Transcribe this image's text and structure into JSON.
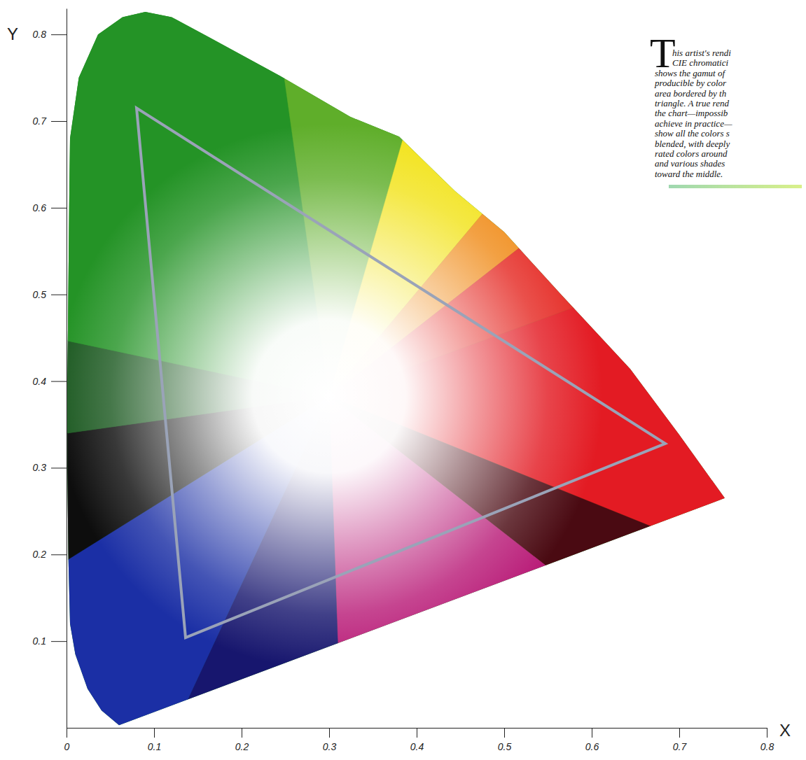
{
  "chart_data": {
    "type": "chromaticity",
    "x_label": "X",
    "y_label": "Y",
    "xlim": [
      0,
      0.8
    ],
    "ylim": [
      0,
      0.83
    ],
    "xticks": [
      0,
      0.1,
      0.2,
      0.3,
      0.4,
      0.5,
      0.6,
      0.7,
      0.8
    ],
    "yticks": [
      0.1,
      0.2,
      0.3,
      0.4,
      0.5,
      0.6,
      0.7,
      0.8
    ],
    "locus": {
      "x": [
        0.06,
        0.04,
        0.024,
        0.01,
        0.004,
        0.002,
        0.001,
        0.001,
        0.002,
        0.003,
        0.004,
        0.014,
        0.036,
        0.064,
        0.09,
        0.12,
        0.164,
        0.244,
        0.324,
        0.38,
        0.444,
        0.5,
        0.564,
        0.644,
        0.7,
        0.752
      ],
      "y": [
        0.003,
        0.02,
        0.045,
        0.085,
        0.12,
        0.2,
        0.3,
        0.4,
        0.5,
        0.6,
        0.68,
        0.75,
        0.8,
        0.82,
        0.826,
        0.82,
        0.796,
        0.752,
        0.705,
        0.682,
        0.619,
        0.572,
        0.501,
        0.414,
        0.338,
        0.265
      ]
    },
    "gamut": {
      "x": [
        0.08,
        0.684,
        0.136
      ],
      "y": [
        0.715,
        0.328,
        0.104
      ],
      "color": "#9aa3b8"
    },
    "annotation": {
      "drop_cap": "T",
      "lines": [
        "his artist's rendi",
        "CIE chromatici",
        "shows the gamut of",
        "producible by color",
        "area bordered by th",
        "triangle. A true rend",
        "the chart—impossib",
        "achieve in practice—",
        "show all the colors s",
        "blended, with deeply",
        "rated colors around",
        "and various shades",
        "toward the middle."
      ]
    }
  }
}
